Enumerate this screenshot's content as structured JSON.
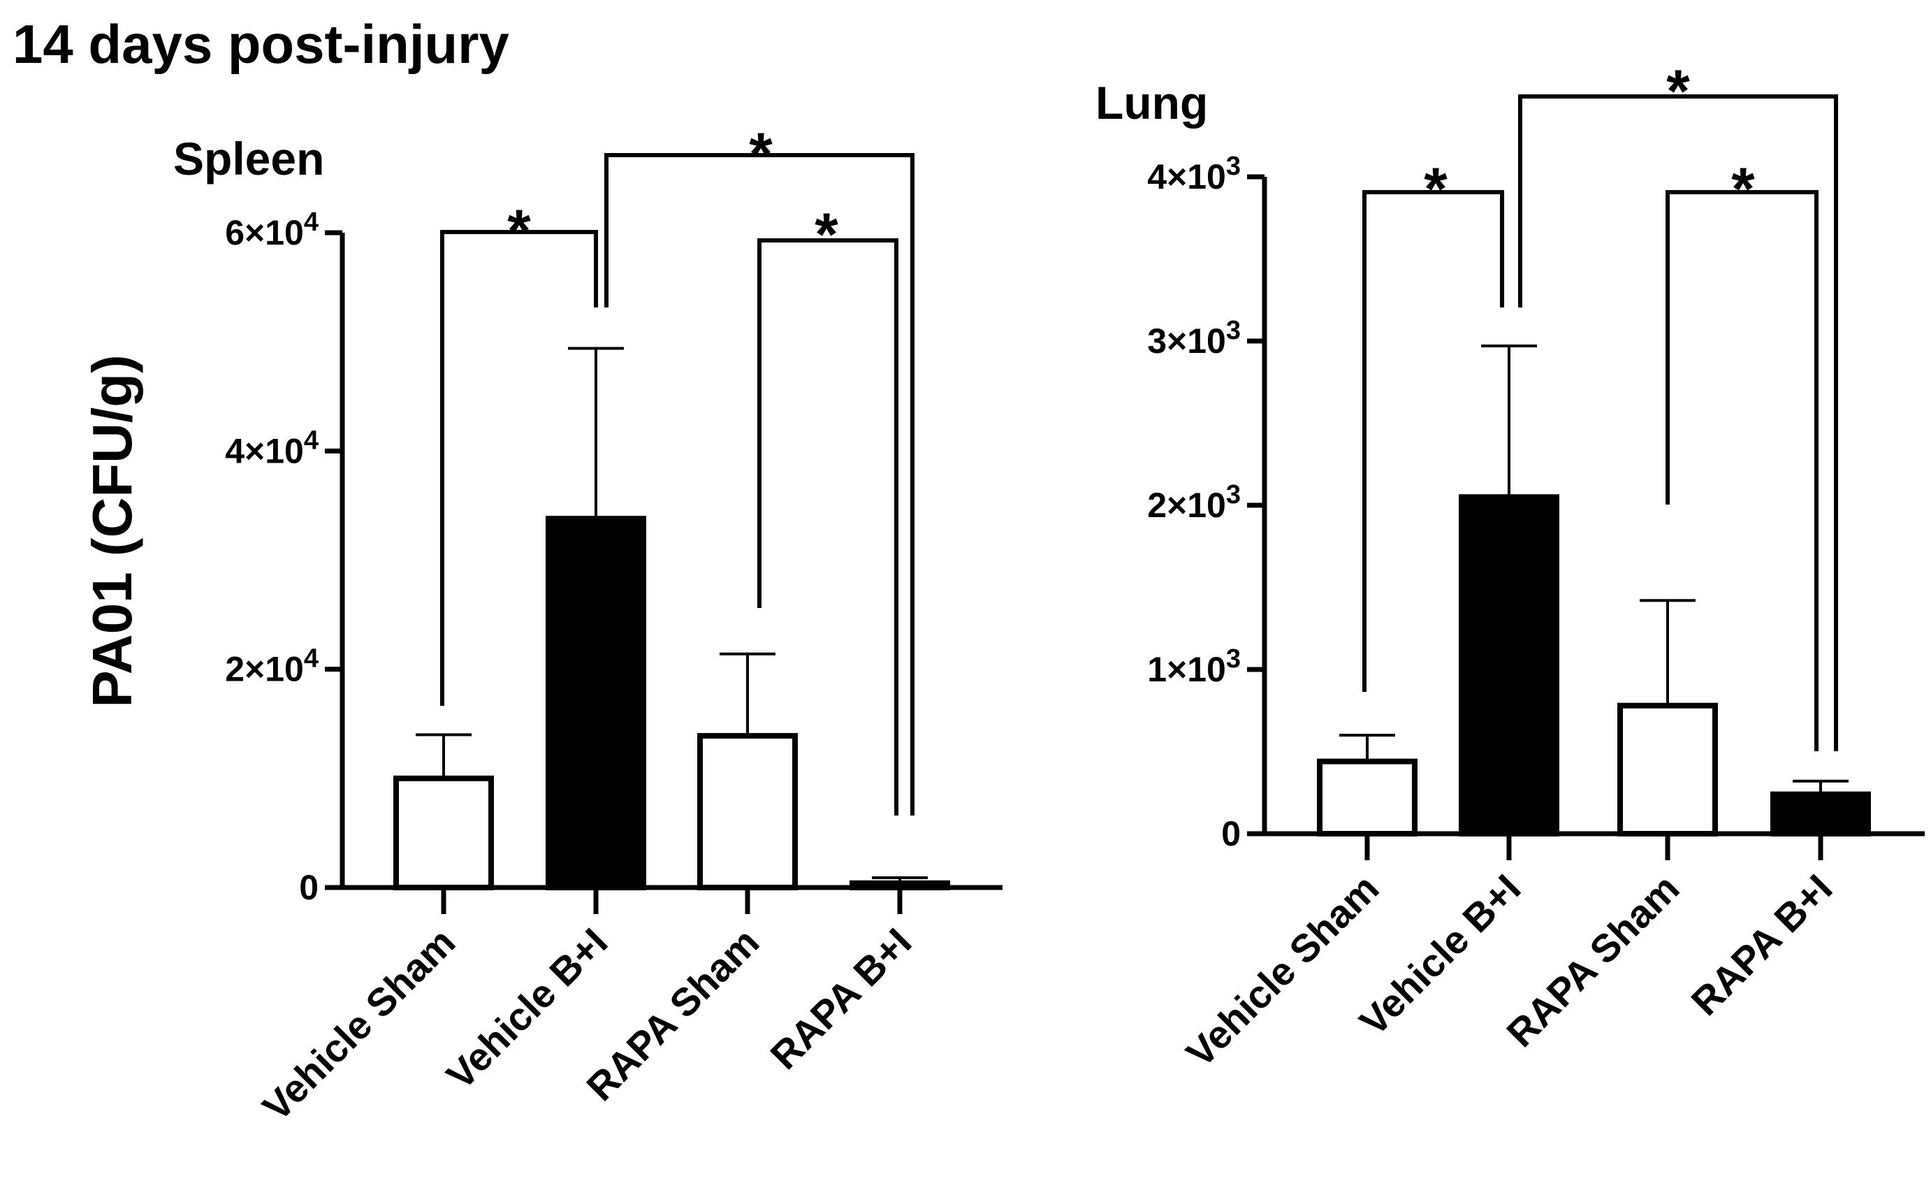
{
  "figure_title": "14 days post-injury",
  "y_axis_label": "PA01 (CFU/g)",
  "colors": {
    "filled": "#000000",
    "open": "#ffffff",
    "stroke": "#000000"
  },
  "chart_data": [
    {
      "type": "bar",
      "title": "Spleen",
      "ylabel": "PA01 (CFU/g)",
      "ylim": [
        0,
        60000
      ],
      "yticks": [
        0,
        20000,
        40000,
        60000
      ],
      "ytick_labels": [
        {
          "mantissa": "0",
          "exp": ""
        },
        {
          "mantissa": "2×10",
          "exp": "4"
        },
        {
          "mantissa": "4×10",
          "exp": "4"
        },
        {
          "mantissa": "6×10",
          "exp": "4"
        }
      ],
      "categories": [
        "Vehicle Sham",
        "Vehicle B+I",
        "RAPA Sham",
        "RAPA B+I"
      ],
      "values": [
        10000,
        33800,
        13900,
        400
      ],
      "errors": [
        4000,
        15600,
        7500,
        500
      ],
      "fills": [
        "open",
        "filled",
        "open",
        "filled"
      ],
      "significance": [
        {
          "from": 0,
          "to": 1,
          "label": "*"
        },
        {
          "from": 2,
          "to": 3,
          "label": "*"
        },
        {
          "from": 1,
          "to": 3,
          "label": "*"
        }
      ]
    },
    {
      "type": "bar",
      "title": "Lung",
      "ylabel": "",
      "ylim": [
        0,
        4000
      ],
      "yticks": [
        0,
        1000,
        2000,
        3000,
        4000
      ],
      "ytick_labels": [
        {
          "mantissa": "0",
          "exp": ""
        },
        {
          "mantissa": "1×10",
          "exp": "3"
        },
        {
          "mantissa": "2×10",
          "exp": "3"
        },
        {
          "mantissa": "3×10",
          "exp": "3"
        },
        {
          "mantissa": "4×10",
          "exp": "3"
        }
      ],
      "categories": [
        "Vehicle Sham",
        "Vehicle B+I",
        "RAPA Sham",
        "RAPA B+I"
      ],
      "values": [
        440,
        2050,
        780,
        240
      ],
      "errors": [
        160,
        920,
        640,
        80
      ],
      "fills": [
        "open",
        "filled",
        "open",
        "filled"
      ],
      "significance": [
        {
          "from": 0,
          "to": 1,
          "label": "*"
        },
        {
          "from": 2,
          "to": 3,
          "label": "*"
        },
        {
          "from": 1,
          "to": 3,
          "label": "*"
        }
      ]
    }
  ]
}
